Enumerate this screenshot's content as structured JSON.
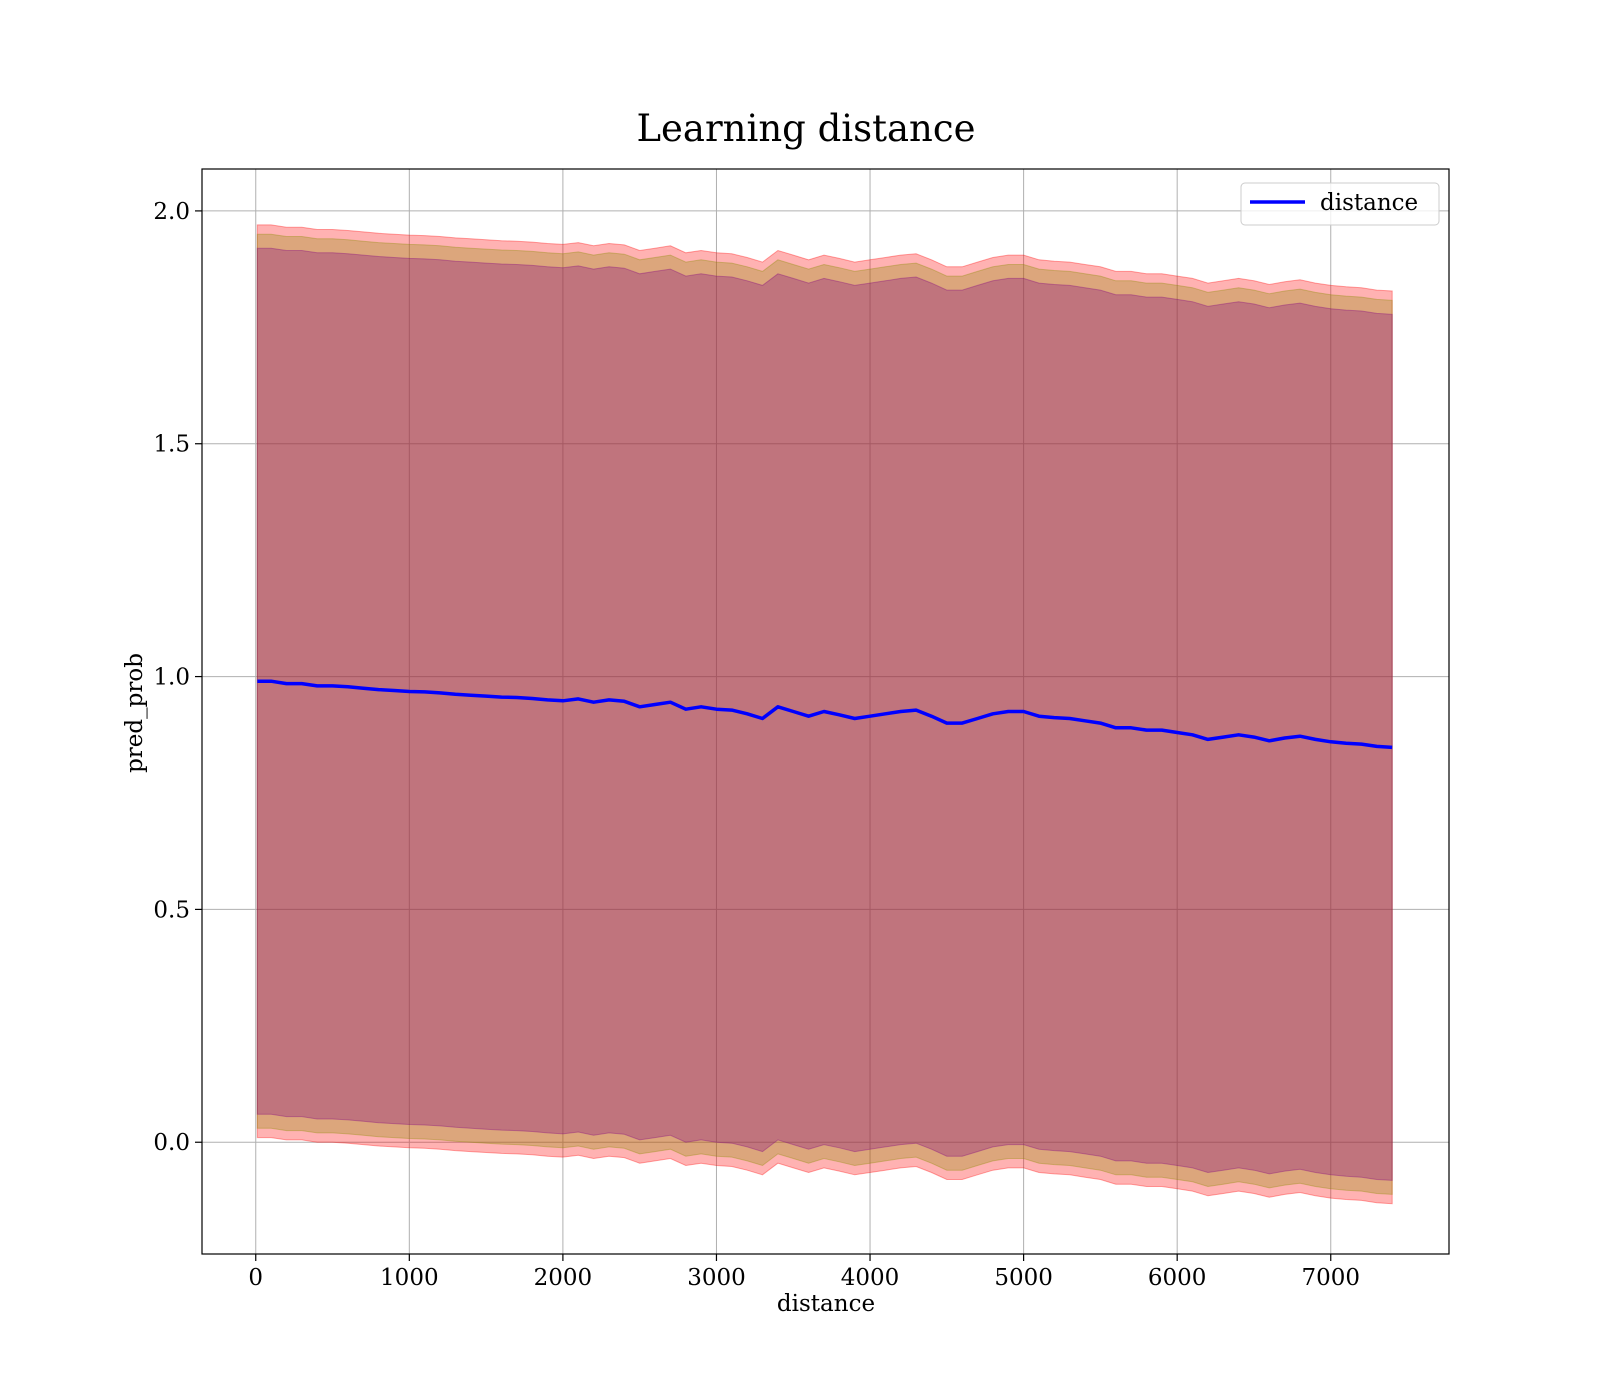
{
  "chart_data": {
    "type": "line",
    "title": "Learning distance",
    "xlabel": "distance",
    "ylabel": "pred_prob",
    "xlim": [
      -350,
      7770
    ],
    "ylim": [
      -0.24,
      2.09
    ],
    "xticks": [
      0,
      1000,
      2000,
      3000,
      4000,
      5000,
      6000,
      7000
    ],
    "xtick_labels": [
      "0",
      "1000",
      "2000",
      "3000",
      "4000",
      "5000",
      "6000",
      "7000"
    ],
    "yticks": [
      0.0,
      0.5,
      1.0,
      1.5,
      2.0
    ],
    "ytick_labels": [
      "0.0",
      "0.5",
      "1.0",
      "1.5",
      "2.0"
    ],
    "grid": true,
    "legend_position": "top-right",
    "series": [
      {
        "name": "distance",
        "color": "#0000ff",
        "x": [
          10,
          100,
          200,
          300,
          400,
          500,
          600,
          700,
          800,
          900,
          1000,
          1100,
          1200,
          1300,
          1400,
          1500,
          1600,
          1700,
          1800,
          1900,
          2000,
          2100,
          2200,
          2300,
          2400,
          2500,
          2600,
          2700,
          2800,
          2900,
          3000,
          3100,
          3200,
          3300,
          3400,
          3500,
          3600,
          3700,
          3800,
          3900,
          4000,
          4100,
          4200,
          4300,
          4400,
          4500,
          4600,
          4700,
          4800,
          4900,
          5000,
          5100,
          5200,
          5300,
          5400,
          5500,
          5600,
          5700,
          5800,
          5900,
          6000,
          6100,
          6200,
          6300,
          6400,
          6500,
          6600,
          6700,
          6800,
          6900,
          7000,
          7100,
          7200,
          7300,
          7400
        ],
        "y": [
          0.99,
          0.99,
          0.985,
          0.985,
          0.98,
          0.98,
          0.978,
          0.975,
          0.972,
          0.97,
          0.968,
          0.967,
          0.965,
          0.962,
          0.96,
          0.958,
          0.956,
          0.955,
          0.953,
          0.95,
          0.948,
          0.952,
          0.945,
          0.95,
          0.947,
          0.935,
          0.94,
          0.945,
          0.93,
          0.935,
          0.93,
          0.928,
          0.92,
          0.91,
          0.935,
          0.925,
          0.915,
          0.925,
          0.918,
          0.91,
          0.915,
          0.92,
          0.925,
          0.928,
          0.915,
          0.9,
          0.9,
          0.91,
          0.92,
          0.925,
          0.925,
          0.915,
          0.912,
          0.91,
          0.905,
          0.9,
          0.89,
          0.89,
          0.885,
          0.885,
          0.88,
          0.875,
          0.865,
          0.87,
          0.875,
          0.87,
          0.862,
          0.868,
          0.872,
          0.865,
          0.86,
          0.857,
          0.855,
          0.85,
          0.848
        ],
        "outer_band_color": "#ff0000",
        "outer_band_offset": 0.98,
        "mid_band_color": "#8b8b00",
        "mid_band_offset": 0.96,
        "inner_band_color": "#800080",
        "inner_band_offset": 0.93
      }
    ]
  }
}
